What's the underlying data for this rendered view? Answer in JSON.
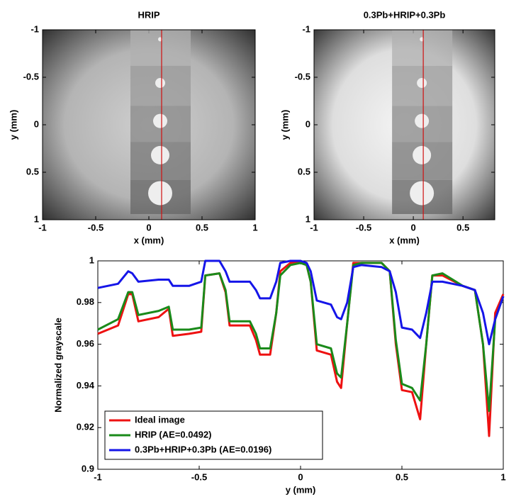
{
  "chart_data": [
    {
      "type": "image",
      "title": "HRIP",
      "title_color": "#e0701c",
      "xlabel": "x (mm)",
      "ylabel": "y (mm)",
      "xlim": [
        -1,
        1
      ],
      "ylim": [
        1,
        -1
      ],
      "xticks": [
        -1,
        -0.5,
        0,
        0.5,
        1
      ],
      "yticks": [
        -1,
        -0.5,
        0,
        0.5,
        1
      ],
      "line_x": 0.12,
      "line_color": "#d01010"
    },
    {
      "type": "image",
      "title": "0.3Pb+HRIP+0.3Pb",
      "title_color": "#e0701c",
      "xlabel": "x (mm)",
      "ylabel": "y (mm)",
      "xlim": [
        -1,
        0.82
      ],
      "ylim": [
        1,
        -1
      ],
      "xticks": [
        -1,
        -0.5,
        0,
        0.5
      ],
      "yticks": [
        -1,
        -0.5,
        0,
        0.5,
        1
      ],
      "line_x": 0.1,
      "line_color": "#d01010"
    },
    {
      "type": "line",
      "xlabel": "y (mm)",
      "ylabel": "Normalized grayscale",
      "xlim": [
        -1,
        1
      ],
      "ylim": [
        0.9,
        1
      ],
      "xticks": [
        -1,
        -0.5,
        0,
        0.5,
        1
      ],
      "yticks": [
        0.9,
        0.92,
        0.94,
        0.96,
        0.98,
        1
      ],
      "legend": "lower left",
      "x": [
        -1,
        -0.9,
        -0.85,
        -0.83,
        -0.8,
        -0.7,
        -0.65,
        -0.63,
        -0.55,
        -0.49,
        -0.47,
        -0.4,
        -0.37,
        -0.35,
        -0.25,
        -0.22,
        -0.2,
        -0.15,
        -0.12,
        -0.1,
        -0.05,
        0,
        0.03,
        0.05,
        0.08,
        0.15,
        0.18,
        0.2,
        0.23,
        0.26,
        0.3,
        0.4,
        0.44,
        0.47,
        0.5,
        0.55,
        0.59,
        0.62,
        0.65,
        0.7,
        0.8,
        0.86,
        0.9,
        0.93,
        0.96,
        1
      ],
      "series": [
        {
          "name": "Ideal image",
          "color": "#ee1111",
          "values": [
            0.965,
            0.969,
            0.984,
            0.984,
            0.971,
            0.973,
            0.977,
            0.964,
            0.965,
            0.966,
            0.993,
            0.994,
            0.985,
            0.969,
            0.969,
            0.962,
            0.955,
            0.955,
            0.975,
            0.995,
            0.999,
            1.0,
            0.998,
            0.99,
            0.957,
            0.955,
            0.942,
            0.939,
            0.97,
            0.999,
            0.999,
            0.999,
            0.995,
            0.96,
            0.938,
            0.937,
            0.924,
            0.96,
            0.993,
            0.993,
            0.988,
            0.986,
            0.96,
            0.916,
            0.975,
            0.984
          ]
        },
        {
          "name": "HRIP (AE=0.0492)",
          "color": "#1a8a1a",
          "values": [
            0.967,
            0.972,
            0.985,
            0.985,
            0.974,
            0.976,
            0.978,
            0.967,
            0.967,
            0.968,
            0.993,
            0.994,
            0.986,
            0.971,
            0.971,
            0.965,
            0.958,
            0.958,
            0.975,
            0.993,
            0.998,
            0.999,
            0.998,
            0.99,
            0.96,
            0.958,
            0.946,
            0.944,
            0.97,
            0.998,
            0.999,
            0.999,
            0.995,
            0.962,
            0.941,
            0.939,
            0.933,
            0.96,
            0.993,
            0.994,
            0.988,
            0.986,
            0.96,
            0.928,
            0.972,
            0.983
          ]
        },
        {
          "name": "0.3Pb+HRIP+0.3Pb (AE=0.0196)",
          "color": "#1515e8",
          "values": [
            0.987,
            0.989,
            0.995,
            0.994,
            0.99,
            0.991,
            0.991,
            0.988,
            0.988,
            0.99,
            1.0,
            1.0,
            0.995,
            0.99,
            0.99,
            0.986,
            0.982,
            0.982,
            0.99,
            0.999,
            1.0,
            1.0,
            0.999,
            0.995,
            0.981,
            0.979,
            0.973,
            0.972,
            0.98,
            0.997,
            0.998,
            0.997,
            0.995,
            0.985,
            0.968,
            0.967,
            0.963,
            0.975,
            0.99,
            0.99,
            0.988,
            0.986,
            0.975,
            0.96,
            0.972,
            0.983
          ]
        }
      ]
    }
  ]
}
